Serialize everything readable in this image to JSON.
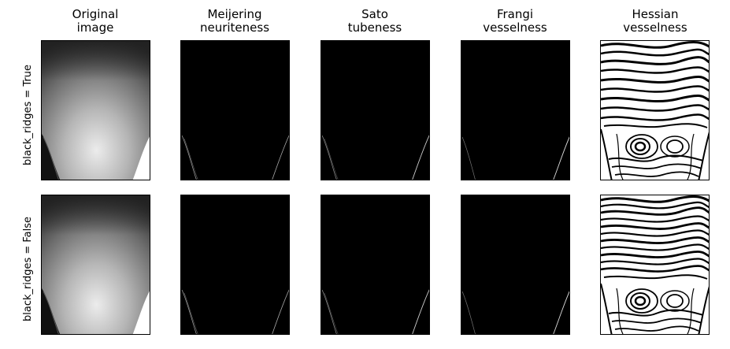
{
  "figure": {
    "column_titles": [
      "Original\nimage",
      "Meijering\nneuriteness",
      "Sato\ntubeness",
      "Frangi\nvesselness",
      "Hessian\nvesselness"
    ],
    "row_labels": [
      "black_ridges = True",
      "black_ridges = False"
    ]
  }
}
